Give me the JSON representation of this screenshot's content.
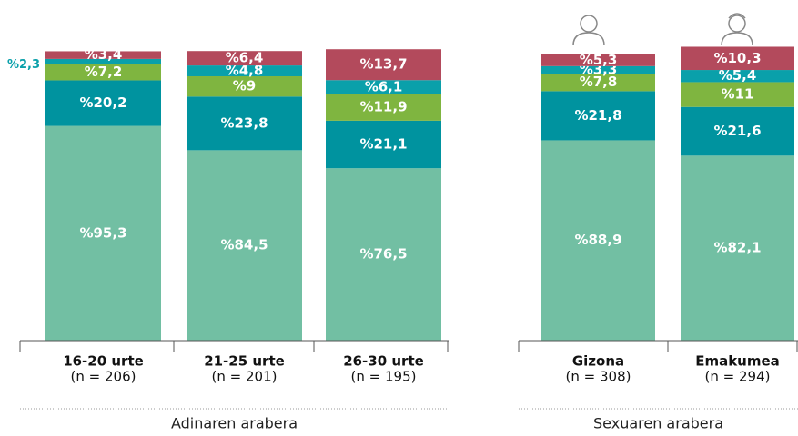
{
  "chart_data": [
    {
      "type": "stacked-bar",
      "group_label": "Adinaren arabera",
      "categories": [
        "16-20 urte",
        "21-25 urte",
        "26-30 urte"
      ],
      "category_notes": [
        "(n = 206)",
        "(n = 201)",
        "(n = 195)"
      ],
      "ylim": [
        0,
        131
      ],
      "series": [
        {
          "color": "#72bfa3",
          "values": [
            95.3,
            84.5,
            76.5
          ],
          "value_labels": [
            "%95,3",
            "%84,5",
            "%76,5"
          ]
        },
        {
          "color": "#00939f",
          "values": [
            20.2,
            23.8,
            21.1
          ],
          "value_labels": [
            "%20,2",
            "%23,8",
            "%21,1"
          ]
        },
        {
          "color": "#7fb540",
          "values": [
            7.2,
            9,
            11.9
          ],
          "value_labels": [
            "%7,2",
            "%9",
            "%11,9"
          ]
        },
        {
          "color": "#0aa0aa",
          "values": [
            2.3,
            4.8,
            6.1
          ],
          "value_labels": [
            "%2,3",
            "%4,8",
            "%6,1"
          ]
        },
        {
          "color": "#b34a5c",
          "values": [
            3.4,
            6.4,
            13.7
          ],
          "value_labels": [
            "%3,4",
            "%6,4",
            "%13,7"
          ]
        }
      ]
    },
    {
      "type": "stacked-bar",
      "group_label": "Sexuaren arabera",
      "categories": [
        "Gizona",
        "Emakumea"
      ],
      "category_notes": [
        "(n = 308)",
        "(n = 294)"
      ],
      "ylim": [
        0,
        131
      ],
      "series": [
        {
          "color": "#72bfa3",
          "values": [
            88.9,
            82.1
          ],
          "value_labels": [
            "%88,9",
            "%82,1"
          ]
        },
        {
          "color": "#00939f",
          "values": [
            21.8,
            21.6
          ],
          "value_labels": [
            "%21,8",
            "%21,6"
          ]
        },
        {
          "color": "#7fb540",
          "values": [
            7.8,
            11
          ],
          "value_labels": [
            "%7,8",
            "%11"
          ]
        },
        {
          "color": "#0aa0aa",
          "values": [
            3.3,
            5.4
          ],
          "value_labels": [
            "%3,3",
            "%5,4"
          ]
        },
        {
          "color": "#b34a5c",
          "values": [
            5.3,
            10.3
          ],
          "value_labels": [
            "%5,3",
            "%10,3"
          ]
        }
      ]
    }
  ]
}
